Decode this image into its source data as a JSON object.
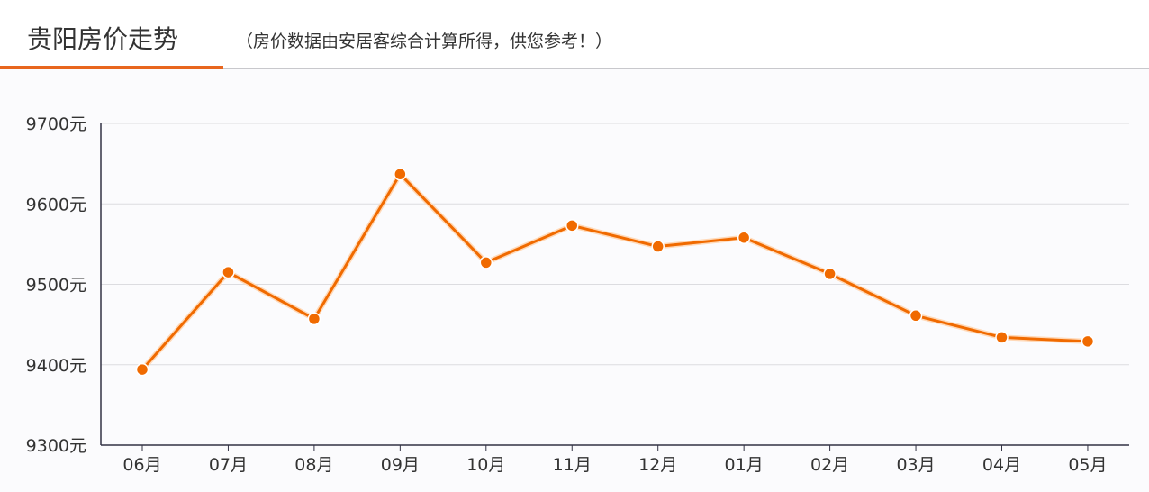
{
  "header": {
    "title": "贵阳房价走势",
    "subtitle": "（房价数据由安居客综合计算所得，供您参考！）"
  },
  "colors": {
    "line": "#f06a00",
    "accent": "#e8661e",
    "grid": "#dcdce0",
    "axis": "#333344"
  },
  "chart_data": {
    "type": "line",
    "title": "贵阳房价走势",
    "categories": [
      "06月",
      "07月",
      "08月",
      "09月",
      "10月",
      "11月",
      "12月",
      "01月",
      "02月",
      "03月",
      "04月",
      "05月"
    ],
    "series": [
      {
        "values": [
          9394,
          9515,
          9457,
          9637,
          9527,
          9573,
          9547,
          9558,
          9513,
          9461,
          9434,
          9429
        ]
      }
    ],
    "ylim": [
      9300,
      9700
    ],
    "yticks": [
      9300,
      9400,
      9500,
      9600,
      9700
    ],
    "ytick_labels": [
      "9300元",
      "9400元",
      "9500元",
      "9600元",
      "9700元"
    ],
    "grid": true,
    "xlabel": "",
    "ylabel": ""
  }
}
